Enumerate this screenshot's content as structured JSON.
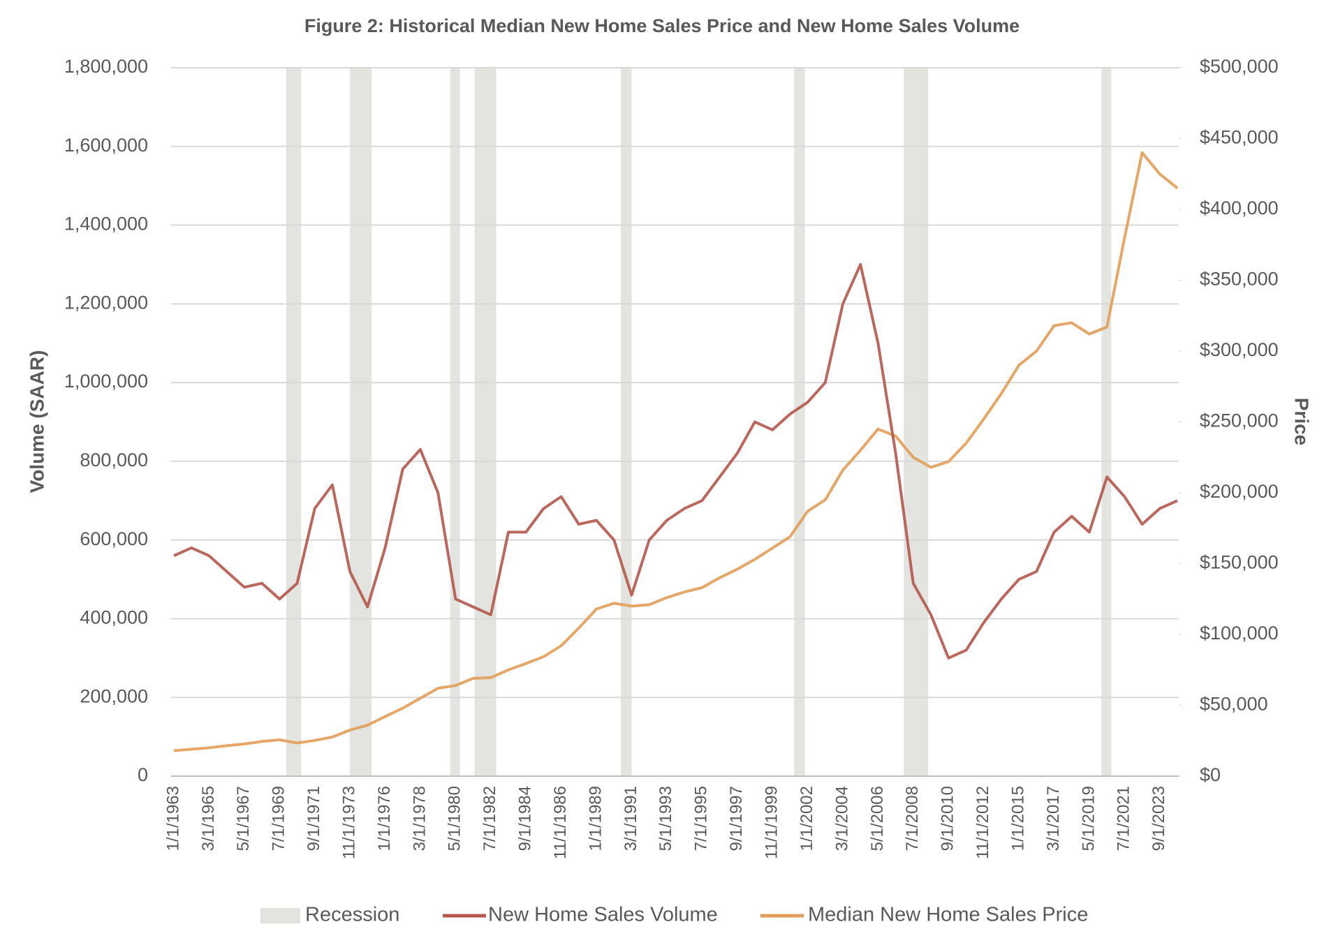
{
  "chart_data": {
    "type": "line",
    "title": "Figure 2: Historical Median New Home Sales Price and New Home Sales Volume",
    "y_label": "Volume (SAAR)",
    "y2_label": "Price",
    "categories": [
      "1/1/1963",
      null,
      "3/1/1965",
      null,
      "5/1/1967",
      null,
      "7/1/1969",
      null,
      "9/1/1971",
      null,
      "11/1/1973",
      null,
      "1/1/1976",
      null,
      "3/1/1978",
      null,
      "5/1/1980",
      null,
      "7/1/1982",
      null,
      "9/1/1984",
      null,
      "11/1/1986",
      null,
      "1/1/1989",
      null,
      "3/1/1991",
      null,
      "5/1/1993",
      null,
      "7/1/1995",
      null,
      "9/1/1997",
      null,
      "11/1/1999",
      null,
      "1/1/2002",
      null,
      "3/1/2004",
      null,
      "5/1/2006",
      null,
      "7/1/2008",
      null,
      "9/1/2010",
      null,
      "11/1/2012",
      null,
      "1/1/2015",
      null,
      "3/1/2017",
      null,
      "5/1/2019",
      null,
      "7/1/2021",
      null,
      "9/1/2023",
      null
    ],
    "series": [
      {
        "name": "New Home Sales Volume",
        "color": "#b3584b",
        "axis": "y",
        "values": [
          560000,
          580000,
          560000,
          520000,
          480000,
          490000,
          450000,
          490000,
          680000,
          740000,
          520000,
          430000,
          580000,
          780000,
          830000,
          720000,
          450000,
          430000,
          410000,
          620000,
          620000,
          680000,
          710000,
          640000,
          650000,
          600000,
          460000,
          600000,
          650000,
          680000,
          700000,
          760000,
          820000,
          900000,
          880000,
          920000,
          950000,
          1000000,
          1200000,
          1300000,
          1100000,
          820000,
          490000,
          410000,
          300000,
          320000,
          390000,
          450000,
          500000,
          520000,
          620000,
          660000,
          620000,
          760000,
          710000,
          640000,
          680000,
          700000
        ]
      },
      {
        "name": "Median New Home Sales Price",
        "color": "#e29d58",
        "axis": "y2",
        "values": [
          18000,
          19000,
          20000,
          21500,
          22700,
          24500,
          25600,
          23400,
          25200,
          27600,
          32500,
          36000,
          42000,
          48000,
          55000,
          62000,
          64000,
          69000,
          69500,
          75000,
          79500,
          84300,
          92000,
          104500,
          118000,
          122000,
          120000,
          121000,
          126000,
          130000,
          133000,
          140000,
          146000,
          153000,
          161000,
          169000,
          187000,
          195000,
          216000,
          230000,
          245000,
          240000,
          225000,
          218000,
          222000,
          235000,
          252000,
          270000,
          290000,
          300000,
          318000,
          320000,
          312000,
          317000,
          380000,
          440000,
          425000,
          415000
        ]
      }
    ],
    "recessions": {
      "name": "Recession",
      "color": "#e3e3e0",
      "periods": [
        {
          "start": "12/1/1969",
          "end": "11/1/1970"
        },
        {
          "start": "11/1/1973",
          "end": "3/1/1975"
        },
        {
          "start": "1/1/1980",
          "end": "7/1/1980"
        },
        {
          "start": "7/1/1981",
          "end": "11/1/1982"
        },
        {
          "start": "7/1/1990",
          "end": "3/1/1991"
        },
        {
          "start": "3/1/2001",
          "end": "11/1/2001"
        },
        {
          "start": "12/1/2007",
          "end": "6/1/2009"
        },
        {
          "start": "2/1/2020",
          "end": "4/1/2020"
        }
      ]
    },
    "ylim": [
      0,
      1800000
    ],
    "yticks": [
      0,
      {
        "value": 200000,
        "label": "200,000"
      },
      {
        "value": 400000,
        "label": "400,000"
      },
      {
        "value": 600000,
        "label": "600,000"
      },
      {
        "value": 800000,
        "label": "800,000"
      },
      {
        "value": 1000000,
        "label": "1,000,000"
      },
      {
        "value": 1200000,
        "label": "1,200,000"
      },
      {
        "value": 1400000,
        "label": "1,400,000"
      },
      {
        "value": 1600000,
        "label": "1,600,000"
      },
      {
        "value": 1800000,
        "label": "1,800,000"
      }
    ],
    "y2lim": [
      0,
      500000
    ],
    "y2ticks": [
      {
        "value": 0,
        "label": "$0"
      },
      {
        "value": 50000,
        "label": "$50,000"
      },
      {
        "value": 100000,
        "label": "$100,000"
      },
      {
        "value": 150000,
        "label": "$150,000"
      },
      {
        "value": 200000,
        "label": "$200,000"
      },
      {
        "value": 250000,
        "label": "$250,000"
      },
      {
        "value": 300000,
        "label": "$300,000"
      },
      {
        "value": 350000,
        "label": "$350,000"
      },
      {
        "value": 400000,
        "label": "$400,000"
      },
      {
        "value": 450000,
        "label": "$450,000"
      },
      {
        "value": 500000,
        "label": "$500,000"
      }
    ],
    "grid": true,
    "legend": "bottom"
  }
}
